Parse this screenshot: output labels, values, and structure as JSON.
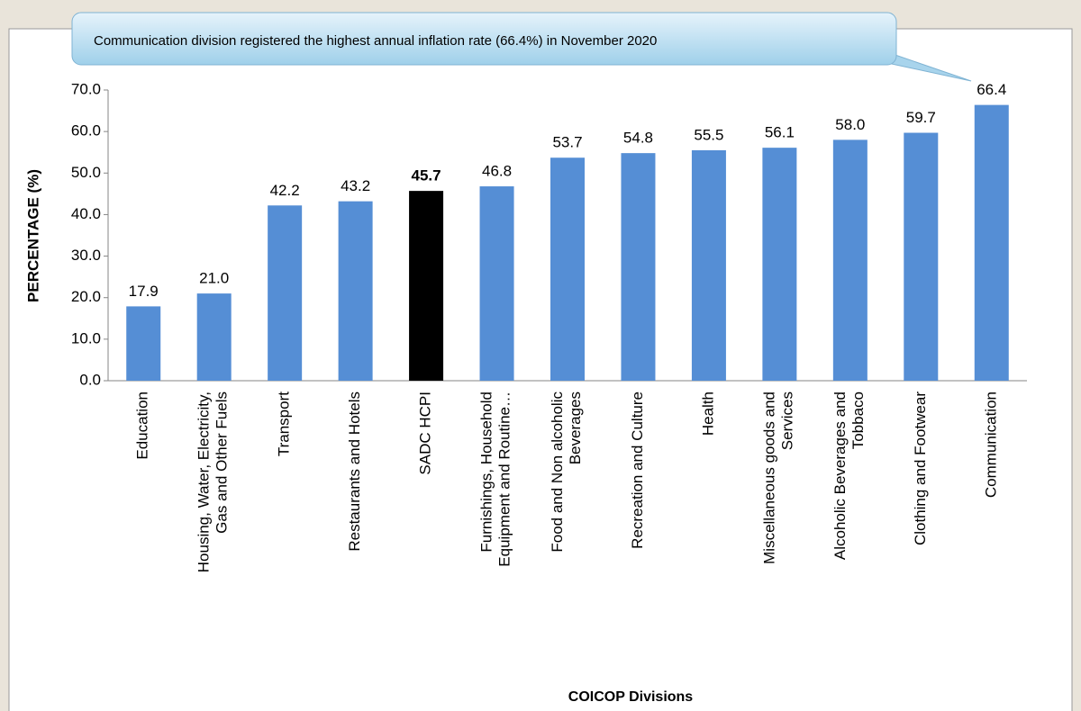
{
  "chart_data": {
    "type": "bar",
    "annotation": "Communication division registered the highest annual inflation rate (66.4%) in November 2020",
    "y_label": "PERCENTAGE (%)",
    "x_label": "COICOP Divisions",
    "categories": [
      "Education",
      "Housing, Water, Electricity, Gas and Other Fuels",
      "Transport",
      "Restaurants and Hotels",
      "SADC HCPI",
      "Furnishings, Household Equipment and Routine…",
      "Food and Non alcoholic Beverages",
      "Recreation and Culture",
      "Health",
      "Miscellaneous goods and Services",
      "Alcoholic Beverages and Tobbaco",
      "Clothing and Footwear",
      "Communication"
    ],
    "values": [
      17.9,
      21.0,
      42.2,
      43.2,
      45.7,
      46.8,
      53.7,
      54.8,
      55.5,
      56.1,
      58.0,
      59.7,
      66.4
    ],
    "value_labels": [
      "17.9",
      "21.0",
      "42.2",
      "43.2",
      "45.7",
      "46.8",
      "53.7",
      "54.8",
      "55.5",
      "56.1",
      "58.0",
      "59.7",
      "66.4"
    ],
    "colors": [
      "#558ed5",
      "#558ed5",
      "#558ed5",
      "#558ed5",
      "#000000",
      "#558ed5",
      "#558ed5",
      "#558ed5",
      "#558ed5",
      "#558ed5",
      "#558ed5",
      "#558ed5",
      "#558ed5"
    ],
    "bold_value_labels": [
      4
    ],
    "ylim": [
      0,
      70
    ],
    "yticks": [
      {
        "value": 0,
        "label": "0.0"
      },
      {
        "value": 10,
        "label": "10.0"
      },
      {
        "value": 20,
        "label": "20.0"
      },
      {
        "value": 30,
        "label": "30.0"
      },
      {
        "value": 40,
        "label": "40.0"
      },
      {
        "value": 50,
        "label": "50.0"
      },
      {
        "value": 60,
        "label": "60.0"
      },
      {
        "value": 70,
        "label": "70.0"
      }
    ],
    "grid": false
  }
}
